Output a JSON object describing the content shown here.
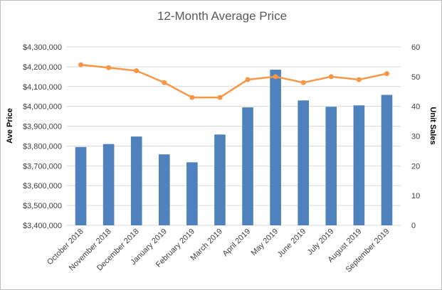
{
  "chart_data": {
    "type": "bar",
    "title": "12-Month Average Price",
    "categories": [
      "October 2018",
      "November 2018",
      "December 2018",
      "January 2019",
      "February 2019",
      "March 2019",
      "April 2019",
      "May 2019",
      "June 2019",
      "July 2019",
      "August 2019",
      "September 2019"
    ],
    "series": [
      {
        "type": "bar",
        "axis": "left",
        "color": "#4f81bd",
        "values": [
          3795000,
          3810000,
          3848000,
          3758000,
          3718000,
          3858000,
          3995000,
          4185000,
          4030000,
          3998000,
          4005000,
          4058000
        ]
      },
      {
        "type": "line",
        "axis": "right",
        "color": "#f79646",
        "values": [
          54,
          53,
          52,
          48,
          43,
          43,
          49,
          50,
          48,
          50,
          49,
          51
        ]
      }
    ],
    "ylabel": "Ave Price",
    "y2label": "Unit Sales",
    "ylim": [
      3400000,
      4300000
    ],
    "y2lim": [
      0,
      60
    ],
    "yticks": [
      "$3,400,000",
      "$3,500,000",
      "$3,600,000",
      "$3,700,000",
      "$3,800,000",
      "$3,900,000",
      "$4,000,000",
      "$4,100,000",
      "$4,200,000",
      "$4,300,000"
    ],
    "y2ticks": [
      "0",
      "10",
      "20",
      "30",
      "40",
      "50",
      "60"
    ],
    "grid": true,
    "legend": "none"
  }
}
